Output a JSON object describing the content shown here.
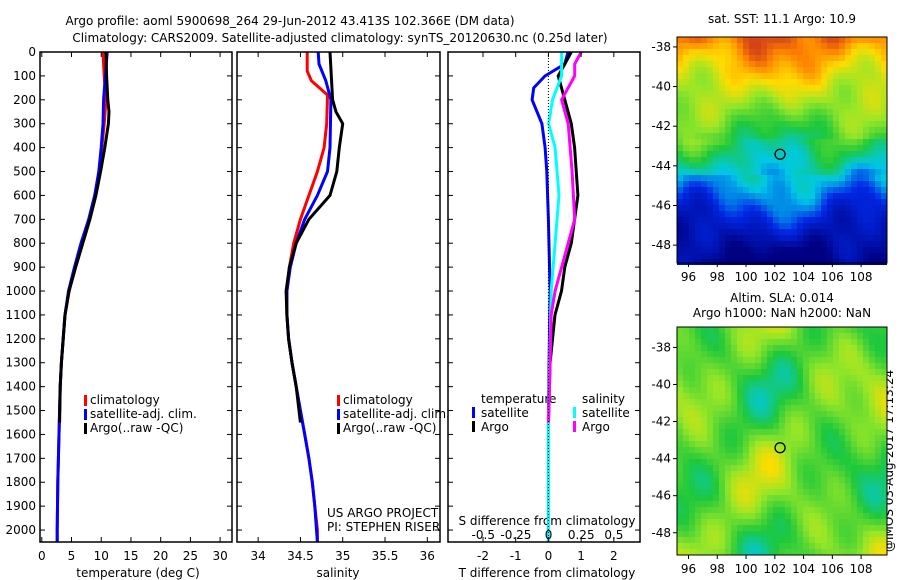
{
  "title_line1": "Argo profile: aoml 5900698_264 29-Jun-2012 43.413S 102.366E (DM data)",
  "title_line2": "Climatology: CARS2009. Satellite-adjusted climatology: synTS_20120630.nc (0.25d later)",
  "credit": "@IMOS 03-Aug-2017 17:13:24",
  "project_line1": "US ARGO PROJECT",
  "project_line2": "PI: STEPHEN RISER",
  "colors": {
    "climatology": "#ff0000",
    "satellite": "#0000ff",
    "argo": "#000000",
    "sal_satellite": "#00ffff",
    "sal_argo": "#ff00ff"
  },
  "chart_data": [
    {
      "type": "line",
      "name": "temperature-profile",
      "xlabel": "temperature (deg C)",
      "ylabel": "",
      "xlim": [
        -0.3,
        32
      ],
      "ylim": [
        2050,
        0
      ],
      "xticks": [
        0,
        5,
        10,
        15,
        20,
        25,
        30
      ],
      "yticks": [
        0,
        100,
        200,
        300,
        400,
        500,
        600,
        700,
        800,
        900,
        1000,
        1100,
        1200,
        1300,
        1400,
        1500,
        1600,
        1700,
        1800,
        1900,
        2000
      ],
      "legend": [
        "climatology",
        "satellite-adj. clim.",
        "Argo(..raw -QC)"
      ],
      "series": [
        {
          "name": "climatology",
          "color": "#ff0000",
          "depth": [
            0,
            100,
            200,
            300,
            400,
            500,
            600,
            700,
            800,
            900,
            1000,
            1100,
            1200,
            1300,
            1400,
            1500,
            1600,
            1800,
            2000,
            2050
          ],
          "values": [
            10.3,
            10.5,
            10.8,
            10.5,
            10.1,
            9.7,
            9.0,
            8.0,
            6.8,
            5.6,
            4.6,
            3.9,
            3.6,
            3.3,
            3.1,
            3.0,
            2.9,
            2.7,
            2.6,
            2.6
          ]
        },
        {
          "name": "satellite-adj. clim.",
          "color": "#0000ff",
          "depth": [
            0,
            100,
            200,
            300,
            400,
            500,
            600,
            700,
            800,
            900,
            1000,
            1100,
            1200,
            1300,
            1400,
            1500,
            1600,
            1800,
            2000,
            2050
          ],
          "values": [
            11.0,
            10.7,
            10.4,
            10.3,
            10.0,
            9.6,
            8.9,
            7.9,
            6.6,
            5.5,
            4.5,
            3.9,
            3.6,
            3.3,
            3.1,
            3.0,
            2.9,
            2.7,
            2.6,
            2.6
          ]
        },
        {
          "name": "Argo(..raw -QC)",
          "color": "#000000",
          "depth": [
            0,
            100,
            200,
            250,
            300,
            400,
            500,
            600,
            700,
            800,
            900,
            1000,
            1100,
            1200,
            1300,
            1400,
            1550
          ],
          "values": [
            10.8,
            10.9,
            11.1,
            11.3,
            11.2,
            10.6,
            9.9,
            9.1,
            8.1,
            6.9,
            5.7,
            4.6,
            3.9,
            3.6,
            3.3,
            3.1,
            3.0
          ]
        }
      ]
    },
    {
      "type": "line",
      "name": "salinity-profile",
      "xlabel": "salinity",
      "ylabel": "",
      "xlim": [
        33.75,
        36.15
      ],
      "ylim": [
        2050,
        0
      ],
      "xticks": [
        34,
        34.5,
        35,
        35.5,
        36
      ],
      "legend": [
        "climatology",
        "satellite-adj. clim.",
        "Argo(..raw -QC)"
      ],
      "series": [
        {
          "name": "climatology",
          "color": "#ff0000",
          "depth": [
            0,
            80,
            120,
            180,
            300,
            400,
            500,
            600,
            700,
            800,
            900,
            1000,
            1100,
            1200,
            1300,
            1400,
            1500,
            1600,
            1700,
            1800,
            1900,
            2000,
            2050
          ],
          "values": [
            34.58,
            34.58,
            34.63,
            34.82,
            34.81,
            34.78,
            34.7,
            34.6,
            34.5,
            34.42,
            34.37,
            34.34,
            34.34,
            34.36,
            34.4,
            34.45,
            34.5,
            34.55,
            34.6,
            34.64,
            34.67,
            34.7,
            34.7
          ]
        },
        {
          "name": "satellite-adj. clim.",
          "color": "#0000ff",
          "depth": [
            0,
            50,
            120,
            200,
            400,
            500,
            600,
            700,
            800,
            900,
            1000,
            1100,
            1200,
            1300,
            1400,
            1500,
            1600,
            1700,
            1800,
            1900,
            2000,
            2050
          ],
          "values": [
            34.71,
            34.72,
            34.8,
            34.86,
            34.85,
            34.82,
            34.7,
            34.55,
            34.45,
            34.38,
            34.34,
            34.34,
            34.36,
            34.4,
            34.45,
            34.5,
            34.55,
            34.6,
            34.64,
            34.67,
            34.69,
            34.7
          ]
        },
        {
          "name": "Argo(..raw -QC)",
          "color": "#000000",
          "depth": [
            0,
            200,
            250,
            300,
            400,
            500,
            600,
            700,
            800,
            900,
            1000,
            1100,
            1200,
            1300,
            1400,
            1550
          ],
          "values": [
            34.85,
            34.88,
            34.92,
            35.0,
            34.96,
            34.93,
            34.85,
            34.6,
            34.45,
            34.37,
            34.33,
            34.34,
            34.36,
            34.4,
            34.45,
            34.5
          ]
        }
      ]
    },
    {
      "type": "line",
      "name": "difference-profile",
      "xlabel": "T difference from climatology",
      "x2label": "S difference from climatology",
      "xlim": [
        -3.07,
        2.8
      ],
      "x2lim": [
        -0.77,
        0.7
      ],
      "ylim": [
        2050,
        0
      ],
      "xticks": [
        -2,
        -1,
        0,
        1,
        2
      ],
      "x2ticks": [
        -0.5,
        -0.25,
        0,
        0.25,
        0.5
      ],
      "x2ticklabels": [
        "-0.5",
        "-0.25",
        "0",
        "0.25",
        "0.5"
      ],
      "legend_headers": [
        "temperature",
        "salinity"
      ],
      "legend": [
        "satellite",
        "Argo",
        "satellite",
        "Argo"
      ],
      "series": [
        {
          "name": "T satellite",
          "axis": "T",
          "color": "#0000ff",
          "depth": [
            0,
            50,
            100,
            150,
            200,
            300,
            400,
            500,
            700,
            1000,
            1500,
            2050
          ],
          "values": [
            0.6,
            0.5,
            -0.1,
            -0.45,
            -0.5,
            -0.2,
            -0.1,
            -0.05,
            0.0,
            0.05,
            0.0,
            0.0
          ]
        },
        {
          "name": "T Argo",
          "axis": "T",
          "color": "#000000",
          "depth": [
            0,
            50,
            100,
            150,
            200,
            300,
            400,
            600,
            800,
            900,
            1000,
            1100,
            1300,
            1550
          ],
          "values": [
            0.7,
            0.5,
            0.3,
            0.4,
            0.5,
            0.7,
            0.8,
            0.9,
            0.7,
            0.5,
            0.4,
            0.2,
            0.05,
            0.0
          ]
        },
        {
          "name": "S satellite",
          "axis": "S",
          "color": "#00ffff",
          "depth": [
            0,
            100,
            200,
            300,
            400,
            600,
            800,
            1000,
            1500,
            2050
          ],
          "values": [
            0.1,
            0.1,
            0.03,
            0.0,
            0.05,
            0.08,
            0.05,
            0.02,
            0.0,
            0.0
          ]
        },
        {
          "name": "S Argo",
          "axis": "S",
          "color": "#ff00ff",
          "depth": [
            0,
            50,
            100,
            200,
            300,
            500,
            700,
            800,
            1000,
            1100,
            1550
          ],
          "values": [
            0.25,
            0.2,
            0.2,
            0.1,
            0.15,
            0.18,
            0.2,
            0.15,
            0.05,
            0.02,
            0.0
          ]
        }
      ]
    },
    {
      "type": "heatmap",
      "name": "sst-map",
      "title": "sat. SST: 11.1  Argo: 10.9",
      "xlim": [
        95.2,
        109.8
      ],
      "ylim": [
        -48.9,
        -37.5
      ],
      "xticks": [
        96,
        98,
        100,
        102,
        104,
        106,
        108
      ],
      "yticks": [
        -38,
        -40,
        -42,
        -44,
        -46,
        -48
      ],
      "marker": {
        "lon": 102.366,
        "lat": -43.413
      }
    },
    {
      "type": "heatmap",
      "name": "sla-map",
      "title": "Altim. SLA: 0.014",
      "subtitle": "Argo h1000: NaN h2000: NaN",
      "xlim": [
        95.2,
        109.8
      ],
      "ylim": [
        -49.2,
        -36.9
      ],
      "xticks": [
        96,
        98,
        100,
        102,
        104,
        106,
        108
      ],
      "yticks": [
        -38,
        -40,
        -42,
        -44,
        -46,
        -48
      ],
      "marker": {
        "lon": 102.366,
        "lat": -43.413
      }
    }
  ]
}
